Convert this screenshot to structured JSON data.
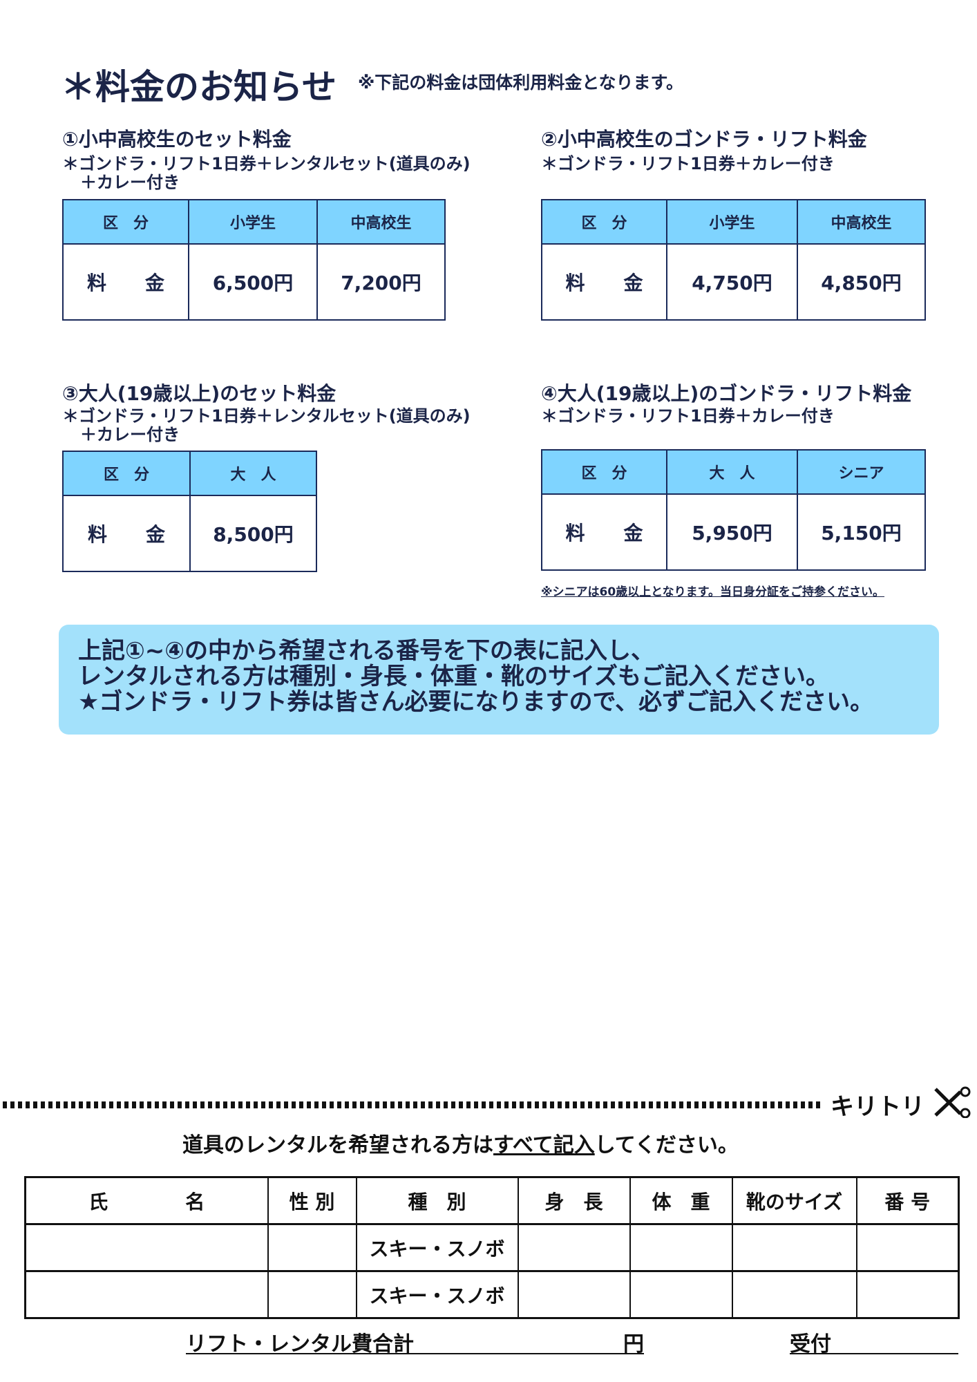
{
  "title": "＊料金のお知らせ",
  "title_note": "※下記の料金は団体利用料金となります。",
  "sections": [
    {
      "heading": "①小中高校生のセット料金",
      "sub1": "＊ゴンドラ・リフト1日券＋レンタルセット(道具のみ)",
      "sub2": "＋カレー付き",
      "headers": [
        "区　分",
        "小学生",
        "中高校生"
      ],
      "values": [
        "料　　金",
        "6,500円",
        "7,200円"
      ]
    },
    {
      "heading": "②小中高校生のゴンドラ・リフト料金",
      "sub1": "＊ゴンドラ・リフト1日券＋カレー付き",
      "headers": [
        "区　分",
        "小学生",
        "中高校生"
      ],
      "values": [
        "料　　金",
        "4,750円",
        "4,850円"
      ]
    },
    {
      "heading": "③大人(19歳以上)のセット料金",
      "sub1": "＊ゴンドラ・リフト1日券＋レンタルセット(道具のみ)",
      "sub2": "＋カレー付き",
      "headers": [
        "区　分",
        "大　人"
      ],
      "values": [
        "料　　金",
        "8,500円"
      ]
    },
    {
      "heading": "④大人(19歳以上)のゴンドラ・リフト料金",
      "sub1": "＊ゴンドラ・リフト1日券＋カレー付き",
      "headers": [
        "区　分",
        "大　人",
        "シニア"
      ],
      "values": [
        "料　　金",
        "5,950円",
        "5,150円"
      ],
      "note": "※シニアは60歳以上となります。当日身分証をご持参ください。"
    }
  ],
  "notice": [
    "上記①~④の中から希望される番号を下の表に記入し、",
    "レンタルされる方は種別・身長・体重・靴のサイズもご記入ください。",
    "★ゴンドラ・リフト券は皆さん必要になりますので、必ずご記入ください。"
  ],
  "cut_label": "キリトリ",
  "instruction": {
    "pre": "道具のレンタルを希望される方は",
    "emph": "すべて記入",
    "post": "してください。"
  },
  "form": {
    "headers": [
      "氏　　　　名",
      "性 別",
      "種　別",
      "身　長",
      "体　重",
      "靴のサイズ",
      "番 号"
    ],
    "rows": [
      [
        "",
        "",
        "スキー・スノボ",
        "",
        "",
        "",
        ""
      ],
      [
        "",
        "",
        "スキー・スノボ",
        "",
        "",
        "",
        ""
      ]
    ]
  },
  "total_label": "リフト・レンタル費合計",
  "yen": "円",
  "reception": "受付",
  "colors": {
    "text": "#1b2447",
    "header_fill": "#7fd4ff",
    "notice_fill": "#a3e1fb"
  }
}
